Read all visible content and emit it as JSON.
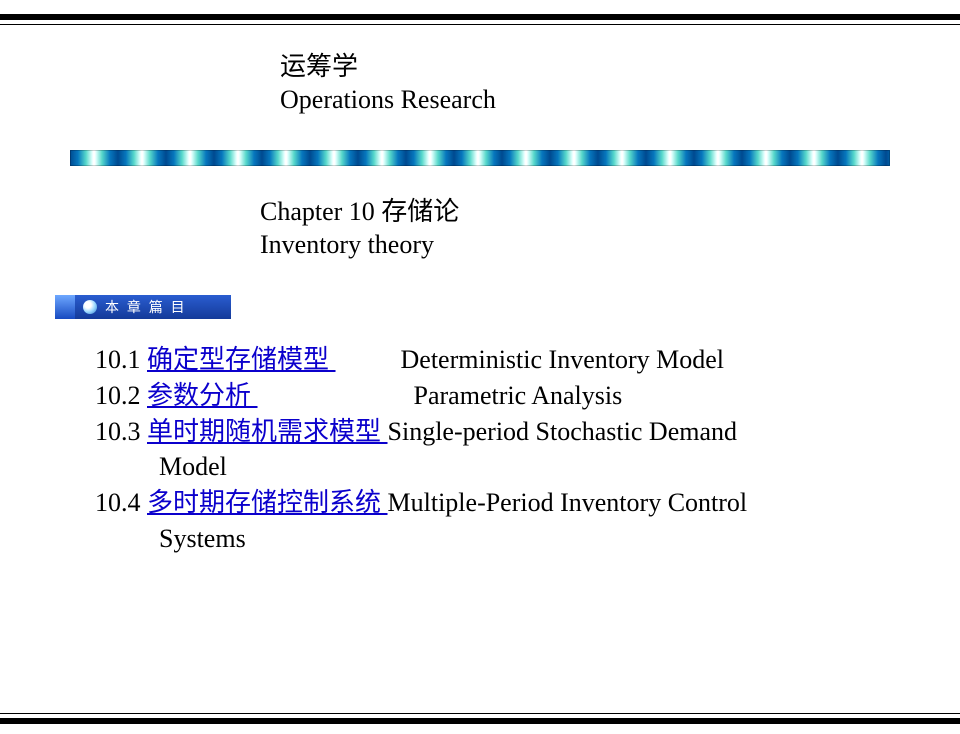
{
  "header": {
    "title_cn": "运筹学",
    "title_en": "Operations Research"
  },
  "chapter": {
    "title_cn": "Chapter 10 存储论",
    "title_en": "Inventory theory"
  },
  "badge": {
    "label": "本 章 篇 目"
  },
  "toc": [
    {
      "num": "10.1",
      "link": "确定型存储模型 ",
      "en": "Deterministic Inventory  Model",
      "cont": ""
    },
    {
      "num": "10.2",
      "link": "参数分析 ",
      "en": "Parametric Analysis",
      "cont": "",
      "padlink": true
    },
    {
      "num": "10.3",
      "link": "单时期随机需求模型 ",
      "en": "Single-period Stochastic  Demand",
      "cont": "Model"
    },
    {
      "num": "10.4",
      "link": "多时期存储控制系统 ",
      "en": "Multiple-Period Inventory Control",
      "cont": "Systems"
    }
  ],
  "colors": {
    "link": "#0b00cc",
    "bar": "#000000",
    "badge_gradient_top": "#2a5dd0",
    "badge_gradient_bottom": "#143a99"
  }
}
